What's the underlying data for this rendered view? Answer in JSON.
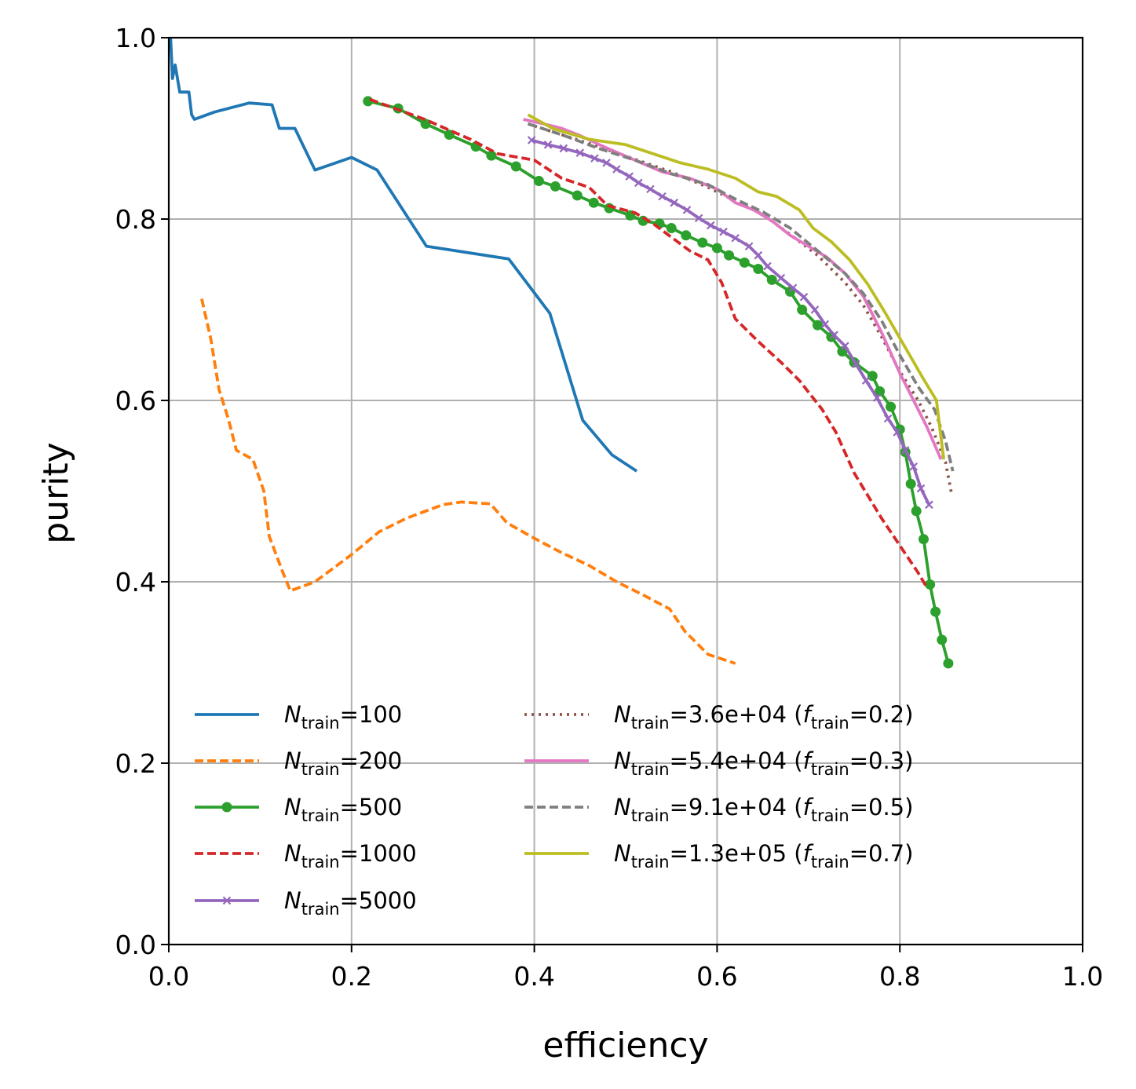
{
  "chart_data": {
    "type": "line",
    "title": "",
    "xlabel": "efficiency",
    "ylabel": "purity",
    "xlim": [
      0.0,
      1.0
    ],
    "ylim": [
      0.0,
      1.0
    ],
    "grid": true,
    "xticks": [
      "0.0",
      "0.2",
      "0.4",
      "0.6",
      "0.8",
      "1.0"
    ],
    "yticks": [
      "0.0",
      "0.2",
      "0.4",
      "0.6",
      "0.8",
      "1.0"
    ],
    "legend_position": "lower-center",
    "series": [
      {
        "name": "N_train=100",
        "label_main": "N",
        "label_sub": "train",
        "label_rest": "=100",
        "color": "#1f77b4",
        "dash": "solid",
        "marker": "none",
        "x": [
          0.002,
          0.004,
          0.007,
          0.012,
          0.022,
          0.025,
          0.028,
          0.05,
          0.088,
          0.113,
          0.121,
          0.138,
          0.16,
          0.2,
          0.228,
          0.282,
          0.372,
          0.417,
          0.453,
          0.485,
          0.512
        ],
        "y": [
          1.0,
          0.955,
          0.97,
          0.94,
          0.94,
          0.915,
          0.91,
          0.918,
          0.928,
          0.926,
          0.9,
          0.9,
          0.854,
          0.868,
          0.854,
          0.77,
          0.756,
          0.696,
          0.578,
          0.54,
          0.522
        ]
      },
      {
        "name": "N_train=200",
        "label_main": "N",
        "label_sub": "train",
        "label_rest": "=200",
        "color": "#ff7f0e",
        "dash": "dashed",
        "marker": "none",
        "x": [
          0.036,
          0.046,
          0.055,
          0.065,
          0.074,
          0.092,
          0.104,
          0.11,
          0.125,
          0.133,
          0.16,
          0.2,
          0.23,
          0.26,
          0.3,
          0.32,
          0.352,
          0.37,
          0.4,
          0.43,
          0.46,
          0.49,
          0.52,
          0.548,
          0.565,
          0.59,
          0.62
        ],
        "y": [
          0.712,
          0.668,
          0.612,
          0.58,
          0.545,
          0.535,
          0.5,
          0.45,
          0.41,
          0.39,
          0.4,
          0.43,
          0.455,
          0.47,
          0.485,
          0.488,
          0.486,
          0.465,
          0.448,
          0.432,
          0.418,
          0.4,
          0.385,
          0.37,
          0.345,
          0.32,
          0.31
        ]
      },
      {
        "name": "N_train=500",
        "label_main": "N",
        "label_sub": "train",
        "label_rest": "=500",
        "color": "#2ca02c",
        "dash": "solid",
        "marker": "dot",
        "x": [
          0.218,
          0.251,
          0.281,
          0.307,
          0.336,
          0.353,
          0.38,
          0.405,
          0.423,
          0.447,
          0.465,
          0.482,
          0.505,
          0.519,
          0.537,
          0.55,
          0.566,
          0.584,
          0.6,
          0.613,
          0.63,
          0.645,
          0.66,
          0.68,
          0.693,
          0.71,
          0.725,
          0.737,
          0.75,
          0.77,
          0.778,
          0.79,
          0.8,
          0.806,
          0.812,
          0.818,
          0.826,
          0.833,
          0.839,
          0.846,
          0.853
        ],
        "y": [
          0.93,
          0.922,
          0.905,
          0.893,
          0.88,
          0.87,
          0.858,
          0.842,
          0.836,
          0.826,
          0.818,
          0.812,
          0.804,
          0.798,
          0.795,
          0.79,
          0.782,
          0.774,
          0.768,
          0.76,
          0.752,
          0.745,
          0.733,
          0.72,
          0.7,
          0.683,
          0.67,
          0.654,
          0.642,
          0.627,
          0.61,
          0.593,
          0.568,
          0.543,
          0.508,
          0.478,
          0.447,
          0.397,
          0.367,
          0.336,
          0.31
        ]
      },
      {
        "name": "N_train=1000",
        "label_main": "N",
        "label_sub": "train",
        "label_rest": "=1000",
        "color": "#d62728",
        "dash": "dashed",
        "marker": "none",
        "x": [
          0.22,
          0.28,
          0.33,
          0.36,
          0.4,
          0.43,
          0.46,
          0.48,
          0.51,
          0.53,
          0.55,
          0.57,
          0.59,
          0.605,
          0.62,
          0.645,
          0.67,
          0.69,
          0.715,
          0.73,
          0.75,
          0.78,
          0.8,
          0.82,
          0.83
        ],
        "y": [
          0.932,
          0.91,
          0.888,
          0.872,
          0.865,
          0.845,
          0.835,
          0.815,
          0.807,
          0.795,
          0.78,
          0.765,
          0.755,
          0.73,
          0.69,
          0.665,
          0.642,
          0.622,
          0.59,
          0.565,
          0.52,
          0.47,
          0.44,
          0.41,
          0.393
        ]
      },
      {
        "name": "N_train=5000",
        "label_main": "N",
        "label_sub": "train",
        "label_rest": "=5000",
        "color": "#9467bd",
        "dash": "solid",
        "marker": "x",
        "x": [
          0.397,
          0.415,
          0.432,
          0.45,
          0.466,
          0.479,
          0.49,
          0.504,
          0.514,
          0.527,
          0.54,
          0.553,
          0.567,
          0.58,
          0.593,
          0.607,
          0.62,
          0.635,
          0.645,
          0.655,
          0.67,
          0.683,
          0.695,
          0.707,
          0.718,
          0.728,
          0.74,
          0.752,
          0.763,
          0.775,
          0.787,
          0.797,
          0.806,
          0.815,
          0.823,
          0.832
        ],
        "y": [
          0.887,
          0.882,
          0.878,
          0.873,
          0.867,
          0.862,
          0.855,
          0.847,
          0.84,
          0.833,
          0.825,
          0.818,
          0.81,
          0.801,
          0.793,
          0.786,
          0.779,
          0.77,
          0.76,
          0.748,
          0.735,
          0.724,
          0.714,
          0.7,
          0.684,
          0.672,
          0.66,
          0.64,
          0.622,
          0.603,
          0.58,
          0.565,
          0.545,
          0.527,
          0.503,
          0.485
        ]
      },
      {
        "name": "N_train=3.6e+04 (f_train=0.2)",
        "label_main": "N",
        "label_sub": "train",
        "label_rest": "=3.6e+04 (",
        "label_f": "f",
        "label_fsub": "train",
        "label_frest": "=0.2)",
        "color": "#8c564b",
        "dash": "dotted",
        "marker": "none",
        "x": [
          0.393,
          0.43,
          0.47,
          0.51,
          0.55,
          0.59,
          0.62,
          0.65,
          0.68,
          0.71,
          0.74,
          0.76,
          0.78,
          0.8,
          0.82,
          0.835,
          0.85,
          0.857
        ],
        "y": [
          0.905,
          0.893,
          0.88,
          0.866,
          0.852,
          0.835,
          0.82,
          0.805,
          0.783,
          0.76,
          0.73,
          0.705,
          0.67,
          0.632,
          0.6,
          0.57,
          0.532,
          0.495
        ]
      },
      {
        "name": "N_train=5.4e+04 (f_train=0.3)",
        "label_main": "N",
        "label_sub": "train",
        "label_rest": "=5.4e+04 (",
        "label_f": "f",
        "label_fsub": "train",
        "label_frest": "=0.3)",
        "color": "#e377c2",
        "dash": "solid",
        "marker": "none",
        "x": [
          0.388,
          0.41,
          0.43,
          0.45,
          0.48,
          0.51,
          0.54,
          0.57,
          0.6,
          0.62,
          0.64,
          0.66,
          0.68,
          0.7,
          0.72,
          0.74,
          0.76,
          0.78,
          0.8,
          0.815,
          0.83,
          0.845
        ],
        "y": [
          0.91,
          0.905,
          0.9,
          0.892,
          0.878,
          0.865,
          0.852,
          0.845,
          0.833,
          0.818,
          0.81,
          0.798,
          0.782,
          0.77,
          0.758,
          0.74,
          0.715,
          0.675,
          0.63,
          0.6,
          0.57,
          0.535
        ]
      },
      {
        "name": "N_train=9.1e+04 (f_train=0.5)",
        "label_main": "N",
        "label_sub": "train",
        "label_rest": "=9.1e+04 (",
        "label_f": "f",
        "label_fsub": "train",
        "label_frest": "=0.5)",
        "color": "#7f7f7f",
        "dash": "dashed",
        "marker": "none",
        "x": [
          0.393,
          0.43,
          0.47,
          0.51,
          0.55,
          0.59,
          0.62,
          0.65,
          0.68,
          0.71,
          0.74,
          0.76,
          0.78,
          0.8,
          0.82,
          0.838,
          0.85,
          0.858
        ],
        "y": [
          0.905,
          0.893,
          0.878,
          0.865,
          0.85,
          0.838,
          0.822,
          0.808,
          0.79,
          0.765,
          0.74,
          0.718,
          0.688,
          0.65,
          0.615,
          0.59,
          0.555,
          0.522
        ]
      },
      {
        "name": "N_train=1.3e+05 (f_train=0.7)",
        "label_main": "N",
        "label_sub": "train",
        "label_rest": "=1.3e+05 (",
        "label_f": "f",
        "label_fsub": "train",
        "label_frest": "=0.7)",
        "color": "#bcbd22",
        "dash": "solid",
        "marker": "none",
        "x": [
          0.393,
          0.42,
          0.46,
          0.5,
          0.53,
          0.56,
          0.59,
          0.62,
          0.645,
          0.665,
          0.69,
          0.705,
          0.725,
          0.745,
          0.765,
          0.785,
          0.805,
          0.825,
          0.84,
          0.848
        ],
        "y": [
          0.915,
          0.9,
          0.888,
          0.882,
          0.872,
          0.862,
          0.855,
          0.845,
          0.83,
          0.825,
          0.81,
          0.79,
          0.775,
          0.755,
          0.728,
          0.695,
          0.66,
          0.625,
          0.6,
          0.535
        ]
      }
    ]
  }
}
